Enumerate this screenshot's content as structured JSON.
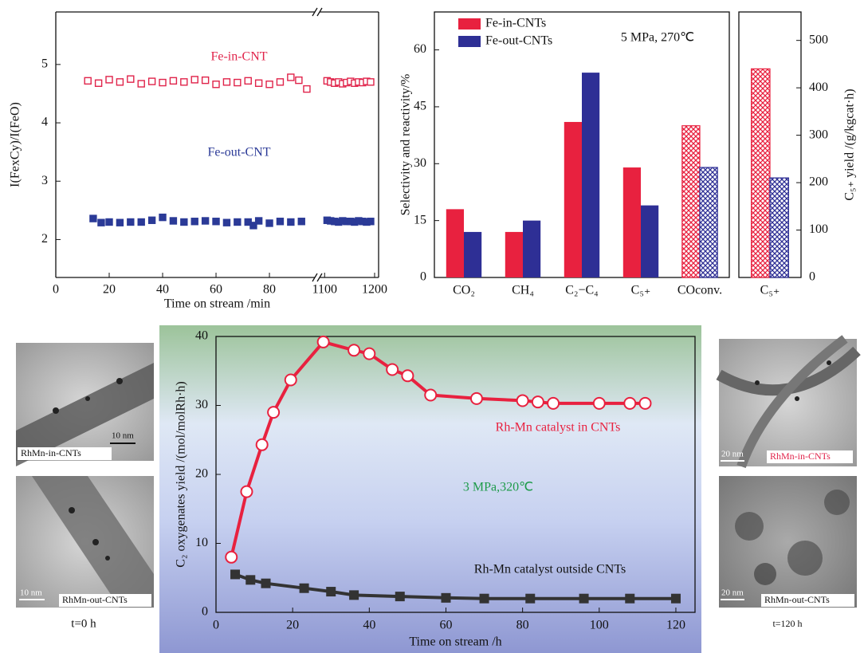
{
  "chart_data": [
    {
      "type": "scatter",
      "ylabel": "I(FexCy)/I(FeO)",
      "xlabel": "Time on stream /min",
      "ylim": [
        1.35,
        5.9
      ],
      "yticks": [
        2,
        3,
        4,
        5
      ],
      "x_segments": [
        {
          "xlim": [
            0,
            97
          ],
          "xticks": [
            0,
            20,
            40,
            60,
            80
          ]
        },
        {
          "xlim": [
            1090,
            1208
          ],
          "xticks": [
            1100,
            1200
          ]
        }
      ],
      "series": [
        {
          "name": "Fe-in-CNT",
          "color": "#e0234a",
          "marker": "open",
          "x": [
            12,
            16,
            20,
            24,
            28,
            32,
            36,
            40,
            44,
            48,
            52,
            56,
            60,
            64,
            68,
            72,
            76,
            80,
            84,
            88,
            91,
            94,
            1105,
            1112,
            1120,
            1128,
            1136,
            1144,
            1152,
            1160,
            1168,
            1176,
            1184,
            1192
          ],
          "values": [
            4.72,
            4.68,
            4.74,
            4.7,
            4.75,
            4.67,
            4.71,
            4.69,
            4.72,
            4.7,
            4.74,
            4.73,
            4.66,
            4.7,
            4.69,
            4.72,
            4.68,
            4.66,
            4.7,
            4.78,
            4.73,
            4.58,
            4.72,
            4.7,
            4.68,
            4.7,
            4.67,
            4.69,
            4.71,
            4.68,
            4.7,
            4.69,
            4.71,
            4.7
          ]
        },
        {
          "name": "Fe-out-CNT",
          "color": "#2b3a97",
          "marker": "filled",
          "x": [
            14,
            17,
            20,
            24,
            28,
            32,
            36,
            40,
            44,
            48,
            52,
            56,
            60,
            64,
            68,
            72,
            74,
            76,
            80,
            84,
            88,
            92,
            1105,
            1112,
            1120,
            1128,
            1136,
            1144,
            1152,
            1160,
            1168,
            1176,
            1184,
            1192
          ],
          "values": [
            2.36,
            2.29,
            2.3,
            2.29,
            2.3,
            2.3,
            2.33,
            2.38,
            2.32,
            2.3,
            2.31,
            2.32,
            2.31,
            2.29,
            2.3,
            2.3,
            2.24,
            2.32,
            2.28,
            2.31,
            2.3,
            2.31,
            2.33,
            2.32,
            2.31,
            2.3,
            2.32,
            2.31,
            2.31,
            2.3,
            2.32,
            2.31,
            2.3,
            2.31
          ]
        }
      ]
    },
    {
      "type": "bar",
      "ylabel": "Selectivity and reactivity/%",
      "ylim": [
        0,
        70
      ],
      "yticks": [
        0,
        15,
        30,
        45,
        60
      ],
      "categories": [
        "CO₂",
        "CH₄",
        "C₂−C₄",
        "C₅₊",
        "COconv."
      ],
      "hatch": [
        false,
        false,
        false,
        false,
        true
      ],
      "annotation": "5 MPa, 270℃",
      "series": [
        {
          "name": "Fe-in-CNTs",
          "color": "#e8213f",
          "values": [
            18,
            12,
            41,
            29,
            40
          ]
        },
        {
          "name": "Fe-out-CNTs",
          "color": "#2e2f95",
          "values": [
            12,
            15,
            54,
            19,
            29
          ]
        }
      ]
    },
    {
      "type": "bar",
      "categories": [
        "C₅₊"
      ],
      "hatch": [
        true
      ],
      "y2label": "C₅₊ yield /(g/kgcat·h)",
      "y2lim": [
        0,
        560
      ],
      "y2ticks": [
        0,
        100,
        200,
        300,
        400,
        500
      ],
      "series": [
        {
          "color": "#e8213f",
          "axis": "y2",
          "values": [
            440
          ]
        },
        {
          "color": "#2e2f95",
          "axis": "y2",
          "values": [
            210
          ]
        }
      ]
    },
    {
      "type": "line",
      "ylabel": "C₂ oxygenates yield /(mol/molRh·h)",
      "xlabel": "Time on stream /h",
      "xlim": [
        0,
        125
      ],
      "xticks": [
        0,
        20,
        40,
        60,
        80,
        100,
        120
      ],
      "ylim": [
        0,
        40
      ],
      "yticks": [
        0,
        10,
        20,
        30,
        40
      ],
      "annotation": "3 MPa,320℃",
      "series": [
        {
          "name": "Rh-Mn catalyst in CNTs",
          "color": "#e8213f",
          "marker": "circle",
          "x": [
            4,
            8,
            12,
            15,
            19.5,
            28,
            36,
            40,
            46,
            50,
            56,
            68,
            80,
            84,
            88,
            100,
            108,
            112
          ],
          "values": [
            8,
            17.5,
            24.3,
            29,
            33.7,
            39.2,
            38,
            37.5,
            35.2,
            34.3,
            31.5,
            31,
            30.7,
            30.5,
            30.3,
            30.3,
            30.3,
            30.3
          ]
        },
        {
          "name": "Rh-Mn catalyst outside CNTs",
          "color": "#333333",
          "marker": "square",
          "x": [
            5,
            9,
            13,
            23,
            30,
            36,
            48,
            60,
            70,
            82,
            96,
            108,
            120
          ],
          "values": [
            5.5,
            4.7,
            4.2,
            3.5,
            3.0,
            2.5,
            2.3,
            2.1,
            2.0,
            2.0,
            2.0,
            2.0,
            2.0
          ]
        }
      ]
    }
  ],
  "images": [
    {
      "caption": "RhMn-in-CNTs",
      "scale": "10 nm"
    },
    {
      "caption": "RhMn-out-CNTs",
      "scale": "10 nm"
    },
    {
      "caption": "RhMn-in-CNTs",
      "scale": "20 nm"
    },
    {
      "caption": "RhMn-out-CNTs",
      "scale": "20 nm"
    }
  ],
  "time_labels": [
    "t=0 h",
    "t=120 h"
  ]
}
